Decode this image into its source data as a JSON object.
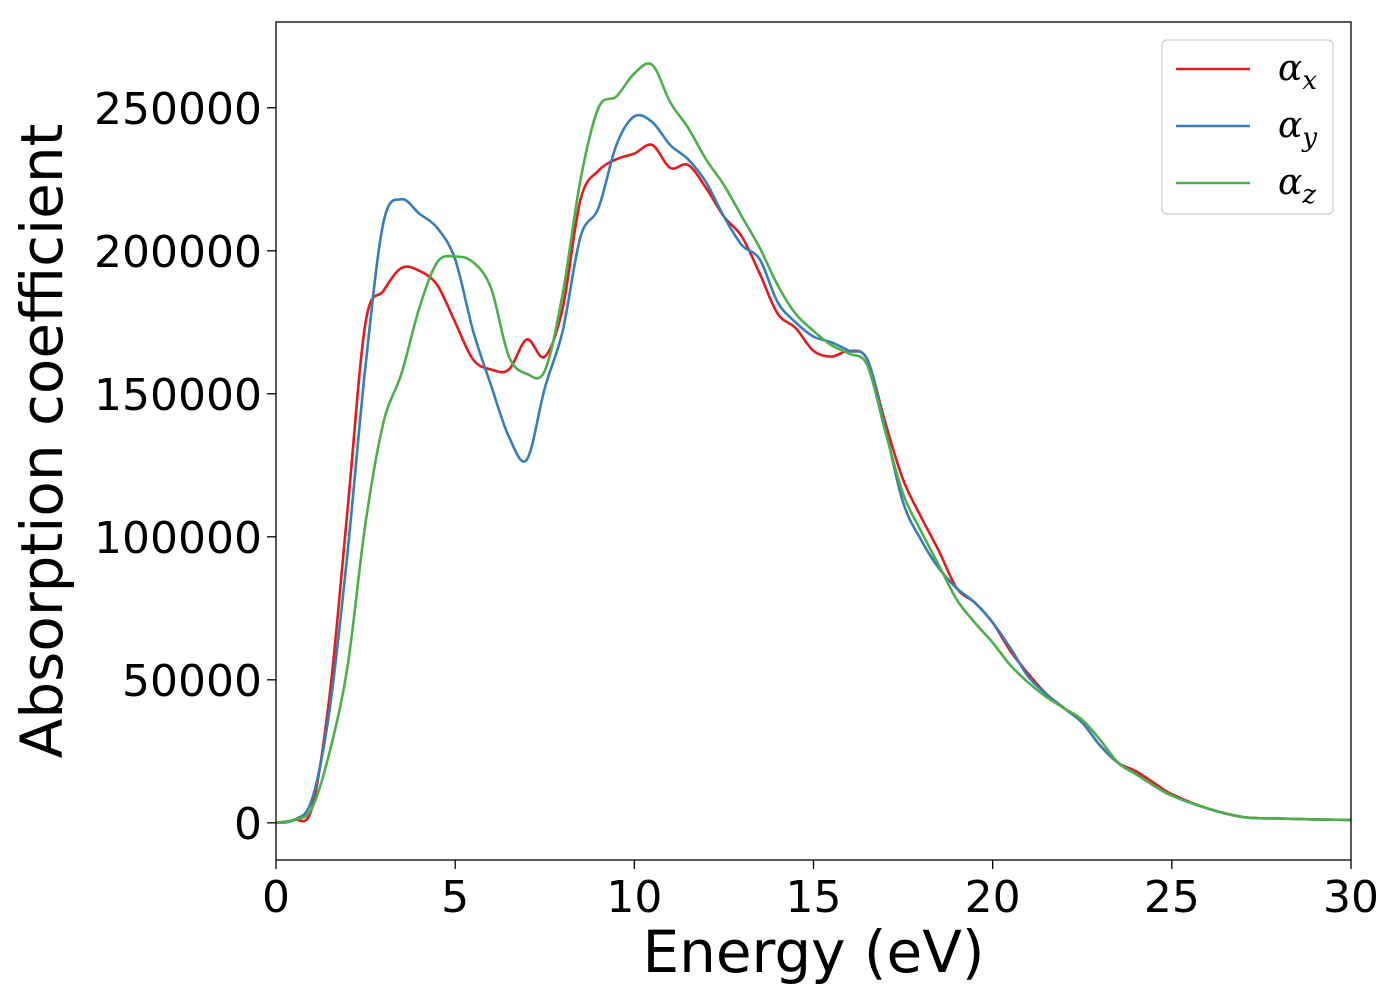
{
  "chart_data": {
    "type": "line",
    "xlabel": "Energy (eV)",
    "ylabel": "Absorption coefficient",
    "xlim": [
      0,
      30
    ],
    "ylim": [
      -13000,
      280000
    ],
    "xticks": [
      0,
      5,
      10,
      15,
      20,
      25,
      30
    ],
    "yticks": [
      0,
      50000,
      100000,
      150000,
      200000,
      250000
    ],
    "grid": false,
    "legend_position": "top-right",
    "series": [
      {
        "name": "αx",
        "legend_base": "α",
        "legend_sub": "x",
        "color": "#e41a1c",
        "points": [
          [
            0,
            0
          ],
          [
            0.5,
            1000
          ],
          [
            1,
            5000
          ],
          [
            1.5,
            45000
          ],
          [
            2,
            110000
          ],
          [
            2.5,
            175000
          ],
          [
            3,
            186000
          ],
          [
            3.5,
            194000
          ],
          [
            4,
            193000
          ],
          [
            4.5,
            188000
          ],
          [
            5,
            175000
          ],
          [
            5.5,
            162000
          ],
          [
            6,
            158500
          ],
          [
            6.5,
            158500
          ],
          [
            7,
            169000
          ],
          [
            7.5,
            163000
          ],
          [
            8,
            180000
          ],
          [
            8.5,
            218000
          ],
          [
            9,
            228000
          ],
          [
            9.5,
            232000
          ],
          [
            10,
            234000
          ],
          [
            10.5,
            237000
          ],
          [
            11,
            229000
          ],
          [
            11.5,
            230000
          ],
          [
            12,
            222000
          ],
          [
            12.5,
            212000
          ],
          [
            13,
            205000
          ],
          [
            13.5,
            192000
          ],
          [
            14,
            178000
          ],
          [
            14.5,
            173000
          ],
          [
            15,
            165000
          ],
          [
            15.5,
            163000
          ],
          [
            16,
            165000
          ],
          [
            16.5,
            162000
          ],
          [
            17,
            140000
          ],
          [
            17.5,
            120000
          ],
          [
            18,
            107000
          ],
          [
            18.5,
            95000
          ],
          [
            19,
            82000
          ],
          [
            19.5,
            77000
          ],
          [
            20,
            70000
          ],
          [
            20.5,
            60000
          ],
          [
            21,
            52000
          ],
          [
            21.5,
            45000
          ],
          [
            22,
            40000
          ],
          [
            22.5,
            35000
          ],
          [
            23,
            27000
          ],
          [
            23.5,
            21000
          ],
          [
            24,
            18000
          ],
          [
            24.5,
            14000
          ],
          [
            25,
            10000
          ],
          [
            26,
            5000
          ],
          [
            27,
            2000
          ],
          [
            28,
            1500
          ],
          [
            29,
            1200
          ],
          [
            30,
            1000
          ]
        ]
      },
      {
        "name": "αy",
        "legend_base": "α",
        "legend_sub": "y",
        "color": "#377eb8",
        "points": [
          [
            0,
            0
          ],
          [
            0.5,
            1000
          ],
          [
            1,
            8000
          ],
          [
            1.5,
            40000
          ],
          [
            2,
            95000
          ],
          [
            2.5,
            160000
          ],
          [
            3,
            210000
          ],
          [
            3.5,
            218000
          ],
          [
            4,
            213000
          ],
          [
            4.5,
            208000
          ],
          [
            5,
            197000
          ],
          [
            5.5,
            172000
          ],
          [
            6,
            153000
          ],
          [
            6.5,
            135000
          ],
          [
            7,
            127000
          ],
          [
            7.5,
            152000
          ],
          [
            8,
            172000
          ],
          [
            8.5,
            205000
          ],
          [
            9,
            215000
          ],
          [
            9.5,
            237000
          ],
          [
            10,
            247000
          ],
          [
            10.5,
            245000
          ],
          [
            11,
            237000
          ],
          [
            11.5,
            232000
          ],
          [
            12,
            224000
          ],
          [
            12.5,
            212000
          ],
          [
            13,
            202000
          ],
          [
            13.5,
            197000
          ],
          [
            14,
            182000
          ],
          [
            14.5,
            175000
          ],
          [
            15,
            170000
          ],
          [
            15.5,
            168000
          ],
          [
            16,
            165000
          ],
          [
            16.5,
            162000
          ],
          [
            17,
            138000
          ],
          [
            17.5,
            112000
          ],
          [
            18,
            99000
          ],
          [
            18.5,
            89000
          ],
          [
            19,
            82000
          ],
          [
            19.5,
            77000
          ],
          [
            20,
            70000
          ],
          [
            20.5,
            61000
          ],
          [
            21,
            51000
          ],
          [
            21.5,
            45000
          ],
          [
            22,
            40000
          ],
          [
            22.5,
            35000
          ],
          [
            23,
            27000
          ],
          [
            23.5,
            21000
          ],
          [
            24,
            17000
          ],
          [
            24.5,
            13000
          ],
          [
            25,
            9500
          ],
          [
            26,
            5000
          ],
          [
            27,
            2000
          ],
          [
            28,
            1500
          ],
          [
            29,
            1200
          ],
          [
            30,
            1000
          ]
        ]
      },
      {
        "name": "αz",
        "legend_base": "α",
        "legend_sub": "z",
        "color": "#4daf4a",
        "points": [
          [
            0,
            0
          ],
          [
            0.5,
            1000
          ],
          [
            1,
            5000
          ],
          [
            1.5,
            25000
          ],
          [
            2,
            55000
          ],
          [
            2.5,
            105000
          ],
          [
            3,
            140000
          ],
          [
            3.5,
            157000
          ],
          [
            4,
            180000
          ],
          [
            4.5,
            196000
          ],
          [
            5,
            198000
          ],
          [
            5.5,
            196000
          ],
          [
            6,
            187000
          ],
          [
            6.5,
            163000
          ],
          [
            7,
            157000
          ],
          [
            7.5,
            158000
          ],
          [
            8,
            185000
          ],
          [
            8.5,
            225000
          ],
          [
            9,
            250000
          ],
          [
            9.5,
            254000
          ],
          [
            10,
            262000
          ],
          [
            10.5,
            265000
          ],
          [
            11,
            252000
          ],
          [
            11.5,
            243000
          ],
          [
            12,
            232000
          ],
          [
            12.5,
            223000
          ],
          [
            13,
            212000
          ],
          [
            13.5,
            201000
          ],
          [
            14,
            188000
          ],
          [
            14.5,
            178000
          ],
          [
            15,
            172000
          ],
          [
            15.5,
            167000
          ],
          [
            16,
            164000
          ],
          [
            16.5,
            160000
          ],
          [
            17,
            137000
          ],
          [
            17.5,
            115000
          ],
          [
            18,
            102000
          ],
          [
            18.5,
            90000
          ],
          [
            19,
            78000
          ],
          [
            19.5,
            70000
          ],
          [
            20,
            63000
          ],
          [
            20.5,
            55000
          ],
          [
            21,
            49000
          ],
          [
            21.5,
            44000
          ],
          [
            22,
            40000
          ],
          [
            22.5,
            36000
          ],
          [
            23,
            29000
          ],
          [
            23.5,
            21000
          ],
          [
            24,
            17000
          ],
          [
            24.5,
            13000
          ],
          [
            25,
            9500
          ],
          [
            26,
            5000
          ],
          [
            27,
            2000
          ],
          [
            28,
            1500
          ],
          [
            29,
            1200
          ],
          [
            30,
            1000
          ]
        ]
      }
    ]
  }
}
